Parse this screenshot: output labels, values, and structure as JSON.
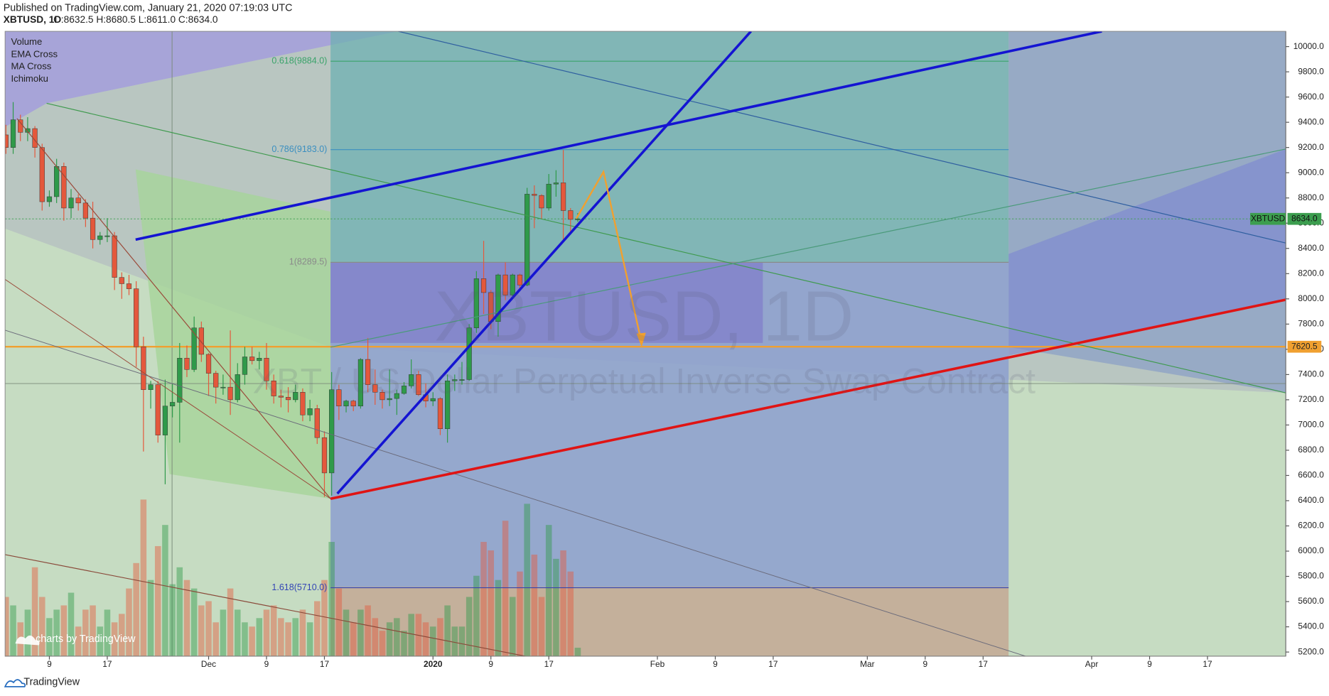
{
  "header": {
    "published": "Published on TradingView.com, January 21, 2020 07:19:03 UTC"
  },
  "chart_data": {
    "type": "candlestick",
    "symbol_line": "XBTUSD, 1D",
    "ohlc_line": "O:8632.5 H:8680.5 L:8611.0 C:8634.0",
    "indicators": [
      "Volume",
      "EMA Cross",
      "MA Cross",
      "Ichimoku"
    ],
    "watermark": "XBTUSD, 1D",
    "watermark_subtitle": "XBT / US Dollar Perpetual Inverse Swap Contract",
    "up_color": "#2f9a4a",
    "down_color": "#e4583c",
    "categories": [
      null,
      null,
      null,
      null,
      null,
      null,
      "9",
      null,
      null,
      null,
      null,
      null,
      null,
      null,
      "17",
      null,
      null,
      null,
      null,
      null,
      null,
      null,
      null,
      null,
      null,
      null,
      null,
      null,
      "Dec",
      null,
      null,
      null,
      null,
      null,
      null,
      null,
      "9",
      null,
      null,
      null,
      null,
      null,
      null,
      null,
      "17",
      null,
      null,
      null,
      null,
      null,
      null,
      null,
      null,
      null,
      null,
      null,
      null,
      null,
      null,
      "2020",
      null,
      null,
      null,
      null,
      null,
      null,
      null,
      "9",
      null,
      null,
      null,
      null,
      null,
      null,
      null,
      "17",
      null,
      null,
      null,
      null,
      null,
      null,
      null,
      null,
      null,
      null,
      null,
      null,
      null,
      null,
      "Feb",
      null,
      null,
      null,
      null,
      null,
      null,
      null,
      "9",
      null,
      null,
      null,
      null,
      null,
      null,
      null,
      "17",
      null,
      null,
      null,
      null,
      null,
      null,
      null,
      null,
      null,
      null,
      null,
      null,
      "Mar",
      null,
      null,
      null,
      null,
      null,
      null,
      null,
      "9",
      null,
      null,
      null,
      null,
      null,
      null,
      null,
      "17",
      null,
      null,
      null,
      null,
      null,
      null,
      null,
      null,
      null,
      null,
      null,
      null,
      null,
      null,
      "Apr",
      null,
      null,
      null,
      null,
      null,
      null,
      null,
      "9",
      null,
      null,
      null,
      null,
      null,
      null,
      null,
      "17",
      null,
      null,
      null,
      null,
      null,
      null,
      null,
      null,
      null,
      null
    ],
    "open": [
      9300,
      9200,
      9420,
      9320,
      9350,
      9200,
      8770,
      8810,
      9050,
      8720,
      8800,
      8760,
      8640,
      8470,
      8500,
      8500,
      8170,
      8120,
      8080,
      7620,
      7280,
      7320,
      6920,
      7150,
      7180,
      7530,
      7440,
      7770,
      7560,
      7410,
      7300,
      7300,
      7200,
      7400,
      7540,
      7510,
      7530,
      7350,
      7230,
      7220,
      7200,
      7260,
      7080,
      7130,
      6900,
      6620,
      7280,
      7150,
      7190,
      7150,
      7520,
      7320,
      7260,
      7200,
      7210,
      7250,
      7310,
      7400,
      7240,
      7190,
      7210,
      6970,
      7350,
      7360,
      7360,
      7770,
      8160,
      8050,
      7820,
      8190,
      8030,
      8190,
      8110,
      8830,
      8820,
      8720,
      8910,
      8920,
      8700,
      8632.5,
      null,
      null,
      null,
      null,
      null,
      null,
      null,
      null,
      null,
      null,
      null,
      null,
      null,
      null,
      null,
      null,
      null,
      null,
      null,
      null,
      null,
      null,
      null,
      null,
      null,
      null,
      null,
      null,
      null,
      null,
      null,
      null,
      null,
      null,
      null,
      null,
      null,
      null,
      null,
      null,
      null,
      null,
      null,
      null,
      null,
      null,
      null,
      null,
      null,
      null,
      null,
      null,
      null,
      null,
      null,
      null,
      null,
      null,
      null,
      null,
      null,
      null,
      null,
      null,
      null,
      null,
      null,
      null,
      null,
      null,
      null,
      null,
      null,
      null,
      null,
      null,
      null,
      null,
      null,
      null,
      null,
      null,
      null,
      null,
      null,
      null,
      null,
      null,
      null,
      null,
      null,
      null,
      null,
      null,
      null,
      null,
      null
    ],
    "high": [
      9380,
      9560,
      9460,
      9440,
      9370,
      9230,
      8860,
      9110,
      9080,
      8870,
      8830,
      8790,
      8770,
      8530,
      8640,
      8530,
      8210,
      8190,
      8140,
      7700,
      7350,
      7350,
      7360,
      7330,
      7650,
      7630,
      7860,
      7820,
      7570,
      7430,
      7400,
      7750,
      7490,
      7620,
      7620,
      7580,
      7650,
      7400,
      7280,
      7300,
      7320,
      7290,
      7200,
      7160,
      6950,
      7420,
      7320,
      7200,
      7200,
      7530,
      7690,
      7440,
      7280,
      7440,
      7280,
      7340,
      7520,
      7430,
      7330,
      7260,
      7220,
      7400,
      7400,
      7500,
      7800,
      8220,
      8460,
      8070,
      8200,
      8290,
      8200,
      8200,
      8880,
      8900,
      8830,
      8990,
      9020,
      9180,
      8720,
      8680.5,
      null,
      null,
      null,
      null,
      null,
      null,
      null,
      null,
      null,
      null,
      null,
      null,
      null,
      null,
      null,
      null,
      null,
      null,
      null,
      null,
      null,
      null,
      null,
      null,
      null,
      null,
      null,
      null,
      null,
      null,
      null,
      null,
      null,
      null,
      null,
      null,
      null,
      null,
      null,
      null,
      null,
      null,
      null,
      null,
      null,
      null,
      null,
      null,
      null,
      null,
      null,
      null,
      null,
      null,
      null,
      null,
      null,
      null,
      null,
      null,
      null,
      null,
      null,
      null,
      null,
      null,
      null,
      null,
      null,
      null,
      null,
      null,
      null,
      null,
      null,
      null,
      null,
      null,
      null,
      null,
      null,
      null,
      null,
      null,
      null,
      null,
      null,
      null,
      null,
      null,
      null,
      null,
      null,
      null,
      null,
      null,
      null
    ],
    "low": [
      9150,
      9150,
      9250,
      9250,
      9120,
      8700,
      8730,
      8760,
      8620,
      8640,
      8700,
      8570,
      8400,
      8430,
      8450,
      8070,
      8000,
      8030,
      7460,
      6790,
      7130,
      6860,
      6530,
      7060,
      6860,
      7380,
      7420,
      7500,
      7230,
      7170,
      7240,
      7080,
      7180,
      7320,
      7480,
      7440,
      7280,
      7170,
      7140,
      7100,
      7180,
      7030,
      7030,
      6850,
      6430,
      6440,
      7040,
      7100,
      7110,
      7130,
      7260,
      7160,
      7130,
      7150,
      7080,
      7240,
      7290,
      7230,
      7140,
      7150,
      6920,
      6860,
      7270,
      7320,
      7350,
      7730,
      7880,
      7760,
      7700,
      7990,
      8000,
      8070,
      8100,
      8560,
      8630,
      8700,
      8810,
      8470,
      8530,
      8611,
      null,
      null,
      null,
      null,
      null,
      null,
      null,
      null,
      null,
      null,
      null,
      null,
      null,
      null,
      null,
      null,
      null,
      null,
      null,
      null,
      null,
      null,
      null,
      null,
      null,
      null,
      null,
      null,
      null,
      null,
      null,
      null,
      null,
      null,
      null,
      null,
      null,
      null,
      null,
      null,
      null,
      null,
      null,
      null,
      null,
      null,
      null,
      null,
      null,
      null,
      null,
      null,
      null,
      null,
      null,
      null,
      null,
      null,
      null,
      null,
      null,
      null,
      null,
      null,
      null,
      null,
      null,
      null,
      null,
      null,
      null,
      null,
      null,
      null,
      null,
      null,
      null,
      null,
      null,
      null,
      null,
      null,
      null,
      null,
      null,
      null,
      null,
      null,
      null,
      null,
      null,
      null,
      null,
      null,
      null,
      null,
      null
    ],
    "close": [
      9200,
      9420,
      9320,
      9350,
      9200,
      8770,
      8810,
      9050,
      8720,
      8800,
      8760,
      8640,
      8470,
      8500,
      8500,
      8170,
      8120,
      8080,
      7620,
      7280,
      7320,
      6920,
      7150,
      7180,
      7530,
      7440,
      7770,
      7560,
      7410,
      7300,
      7300,
      7200,
      7400,
      7540,
      7510,
      7530,
      7350,
      7230,
      7220,
      7200,
      7260,
      7080,
      7130,
      6900,
      6620,
      7280,
      7150,
      7190,
      7150,
      7520,
      7320,
      7260,
      7200,
      7210,
      7250,
      7310,
      7400,
      7240,
      7190,
      7210,
      6970,
      7350,
      7360,
      7360,
      7770,
      8160,
      8050,
      7820,
      8190,
      8030,
      8190,
      8110,
      8830,
      8820,
      8720,
      8910,
      8920,
      8700,
      8630,
      8634,
      null,
      null,
      null,
      null,
      null,
      null,
      null,
      null,
      null,
      null,
      null,
      null,
      null,
      null,
      null,
      null,
      null,
      null,
      null,
      null,
      null,
      null,
      null,
      null,
      null,
      null,
      null,
      null,
      null,
      null,
      null,
      null,
      null,
      null,
      null,
      null,
      null,
      null,
      null,
      null,
      null,
      null,
      null,
      null,
      null,
      null,
      null,
      null,
      null,
      null,
      null,
      null,
      null,
      null,
      null,
      null,
      null,
      null,
      null,
      null,
      null,
      null,
      null,
      null,
      null,
      null,
      null,
      null,
      null,
      null,
      null,
      null,
      null,
      null,
      null,
      null,
      null,
      null,
      null,
      null,
      null,
      null,
      null,
      null,
      null,
      null,
      null,
      null,
      null,
      null,
      null,
      null,
      null,
      null,
      null,
      null,
      null
    ],
    "volume": [
      70,
      60,
      40,
      55,
      105,
      70,
      45,
      55,
      60,
      75,
      35,
      55,
      60,
      35,
      55,
      40,
      50,
      80,
      110,
      185,
      90,
      130,
      155,
      85,
      105,
      90,
      80,
      60,
      65,
      40,
      55,
      80,
      55,
      40,
      35,
      45,
      55,
      60,
      45,
      40,
      45,
      55,
      40,
      65,
      90,
      135,
      80,
      55,
      40,
      55,
      60,
      45,
      30,
      40,
      45,
      30,
      50,
      50,
      40,
      35,
      45,
      60,
      35,
      35,
      70,
      95,
      135,
      125,
      90,
      160,
      70,
      100,
      180,
      120,
      70,
      155,
      115,
      125,
      100,
      10,
      null,
      null,
      null,
      null,
      null,
      null,
      null,
      null,
      null,
      null,
      null,
      null,
      null,
      null,
      null,
      null,
      null,
      null,
      null,
      null,
      null,
      null,
      null,
      null,
      null,
      null,
      null,
      null,
      null,
      null,
      null,
      null,
      null,
      null,
      null,
      null,
      null,
      null,
      null,
      null,
      null,
      null,
      null,
      null,
      null,
      null,
      null,
      null,
      null,
      null,
      null,
      null,
      null,
      null,
      null,
      null,
      null,
      null,
      null,
      null,
      null,
      null,
      null,
      null,
      null,
      null,
      null,
      null,
      null,
      null,
      null,
      null,
      null,
      null,
      null,
      null,
      null,
      null,
      null,
      null,
      null,
      null,
      null,
      null,
      null,
      null,
      null,
      null,
      null,
      null,
      null,
      null,
      null,
      null,
      null,
      null,
      null
    ],
    "ylim": [
      5167,
      10121
    ],
    "yticks": [
      {
        "value": 5200,
        "label": "5200.0"
      },
      {
        "value": 5400,
        "label": "5400.0"
      },
      {
        "value": 5600,
        "label": "5600.0"
      },
      {
        "value": 5800,
        "label": "5800.0"
      },
      {
        "value": 6000,
        "label": "6000.0"
      },
      {
        "value": 6200,
        "label": "6200.0"
      },
      {
        "value": 6400,
        "label": "6400.0"
      },
      {
        "value": 6600,
        "label": "6600.0"
      },
      {
        "value": 6800,
        "label": "6800.0"
      },
      {
        "value": 7000,
        "label": "7000.0"
      },
      {
        "value": 7200,
        "label": "7200.0"
      },
      {
        "value": 7400,
        "label": "7400.0"
      },
      {
        "value": 7600,
        "label": "7600.0"
      },
      {
        "value": 7800,
        "label": "7800.0"
      },
      {
        "value": 8000,
        "label": "8000.0"
      },
      {
        "value": 8200,
        "label": "8200.0"
      },
      {
        "value": 8400,
        "label": "8400.0"
      },
      {
        "value": 8600,
        "label": "8600.0"
      },
      {
        "value": 8800,
        "label": "8800.0"
      },
      {
        "value": 9000,
        "label": "9000.0"
      },
      {
        "value": 9200,
        "label": "9200.0"
      },
      {
        "value": 9400,
        "label": "9400.0"
      },
      {
        "value": 9600,
        "label": "9600.0"
      },
      {
        "value": 9800,
        "label": "9800.0"
      },
      {
        "value": 10000,
        "label": "10000.0"
      }
    ],
    "fib_levels": [
      {
        "value": 9884,
        "label": "0.618(9884.0)",
        "color": "#3aa36a"
      },
      {
        "value": 9183,
        "label": "0.786(9183.0)",
        "color": "#3b8fc0"
      },
      {
        "value": 8289.5,
        "label": "1(8289.5)",
        "color": "#8a8a8a"
      },
      {
        "value": 5710,
        "label": "1.618(5710.0)",
        "color": "#3345b5"
      }
    ],
    "horizontal_line": {
      "value": 7620.5,
      "label": "7620.5",
      "color": "#f0a030"
    },
    "last_price": {
      "name": "XBTUSD",
      "value": 8634,
      "label": "8634.0",
      "color": "#3c9e4f"
    },
    "branding": "charts by TradingView",
    "footer": "TradingView"
  }
}
